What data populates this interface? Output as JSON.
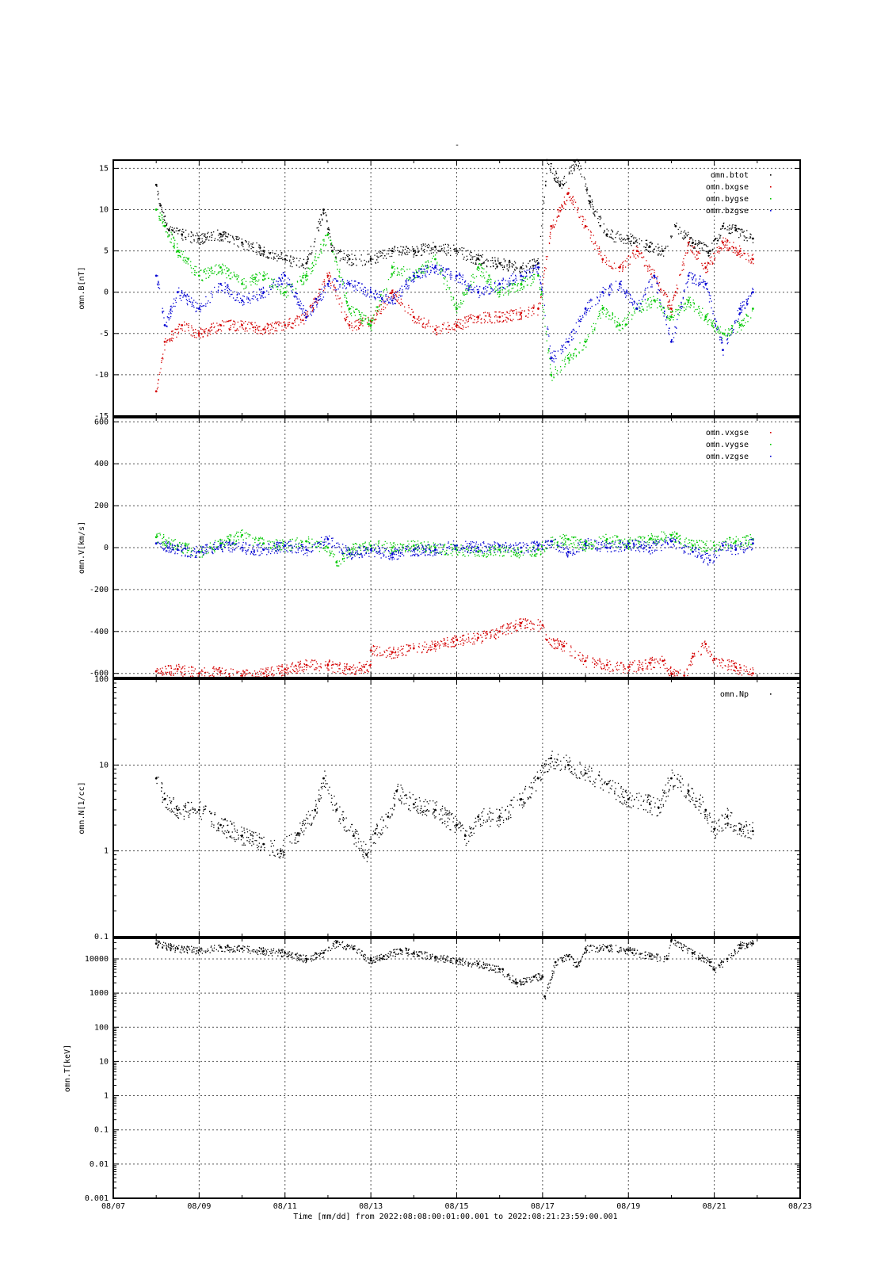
{
  "title": "-",
  "xlabel_template": "Time [mm/dd]  from 2022:08:08:00:01:00.001  to  2022:08:21:23:59:00.001",
  "x_ticks": [
    "08/07",
    "08/09",
    "08/11",
    "08/13",
    "08/15",
    "08/17",
    "08/19",
    "08/21",
    "08/23"
  ],
  "colors": {
    "black": "#000000",
    "red": "#d40000",
    "green": "#00c800",
    "blue": "#0000d2",
    "grid": "#555555"
  },
  "chart_data": [
    {
      "type": "scatter",
      "ylabel": "omn.B[nT]",
      "xlim": [
        7,
        23
      ],
      "ylim": [
        -15,
        16
      ],
      "yticks": [
        -15,
        -10,
        -5,
        0,
        5,
        10,
        15
      ],
      "ytick_labels": [
        "-15",
        "-10",
        "-5",
        "0",
        "5",
        "10",
        "15"
      ],
      "grid": true,
      "legend_placement": "top-right",
      "series": [
        {
          "name": "omn.btot",
          "color": "#000000",
          "x": [
            8.0,
            8.1,
            8.3,
            8.6,
            9.0,
            9.5,
            10.0,
            10.5,
            11.0,
            11.5,
            11.9,
            12.1,
            12.5,
            13.0,
            13.5,
            14.0,
            14.5,
            15.0,
            15.5,
            16.0,
            16.5,
            16.9,
            17.1,
            17.4,
            17.8,
            18.1,
            18.5,
            19.0,
            19.5,
            19.8,
            20.1,
            20.5,
            20.9,
            21.2,
            21.5,
            21.9
          ],
          "y": [
            13,
            10.5,
            7.5,
            7,
            6.5,
            7,
            6,
            5,
            4,
            3.5,
            10,
            5,
            4,
            4,
            5,
            5,
            5.5,
            5,
            4,
            3.5,
            3,
            3.5,
            16,
            13,
            16,
            11,
            7,
            6.5,
            5.5,
            5,
            8,
            6,
            5,
            8,
            7.5,
            6.5
          ]
        },
        {
          "name": "omn.bxgse",
          "color": "#d40000",
          "x": [
            8.0,
            8.2,
            8.6,
            9.0,
            9.5,
            10.0,
            10.5,
            11.0,
            11.5,
            12.0,
            12.5,
            13.0,
            13.5,
            14.0,
            14.5,
            15.0,
            15.5,
            16.0,
            16.5,
            16.9,
            17.2,
            17.6,
            18.0,
            18.4,
            18.8,
            19.2,
            19.6,
            20.0,
            20.4,
            20.8,
            21.2,
            21.6,
            21.9
          ],
          "y": [
            -12,
            -6,
            -4,
            -5,
            -4,
            -4,
            -4.5,
            -4,
            -3,
            2,
            -4,
            -3.5,
            0,
            -3,
            -4.5,
            -4,
            -3,
            -3,
            -2.5,
            -2,
            8,
            12,
            8,
            4,
            3,
            5,
            2,
            -2,
            6,
            3,
            6,
            5,
            4
          ]
        },
        {
          "name": "omn.bygse",
          "color": "#00c800",
          "x": [
            8.0,
            8.2,
            8.5,
            9.0,
            9.5,
            10.0,
            10.5,
            11.0,
            11.5,
            12.0,
            12.5,
            13.0,
            13.5,
            14.0,
            14.5,
            15.0,
            15.5,
            16.0,
            16.5,
            16.9,
            17.2,
            17.6,
            18.0,
            18.4,
            18.8,
            19.2,
            19.6,
            20.0,
            20.4,
            20.8,
            21.2,
            21.6,
            21.9
          ],
          "y": [
            10,
            8,
            5,
            2,
            3,
            1,
            2,
            0,
            2,
            7,
            -2,
            -4,
            3,
            2,
            4,
            -2,
            3,
            0,
            1,
            2,
            -10,
            -8,
            -6,
            -2,
            -4,
            -2,
            -1,
            -3,
            -1,
            -3,
            -5,
            -4,
            -2
          ]
        },
        {
          "name": "omn.bzgse",
          "color": "#0000d2",
          "x": [
            8.0,
            8.2,
            8.5,
            9.0,
            9.5,
            10.0,
            10.5,
            11.0,
            11.5,
            12.0,
            12.5,
            13.0,
            13.5,
            14.0,
            14.5,
            15.0,
            15.5,
            16.0,
            16.5,
            16.9,
            17.2,
            17.6,
            18.0,
            18.4,
            18.8,
            19.2,
            19.6,
            20.0,
            20.4,
            20.8,
            21.2,
            21.6,
            21.9
          ],
          "y": [
            2,
            -4,
            0,
            -2,
            1,
            -1,
            0,
            2,
            -3,
            1,
            1,
            0,
            -1,
            2,
            3,
            2,
            0,
            1,
            2,
            3,
            -8,
            -6,
            -2,
            0,
            1,
            -2,
            2,
            -6,
            2,
            1,
            -7,
            -2,
            0
          ]
        }
      ]
    },
    {
      "type": "scatter",
      "ylabel": "omn.V[km/s]",
      "xlim": [
        7,
        23
      ],
      "ylim": [
        -620,
        620
      ],
      "yticks": [
        -600,
        -400,
        -200,
        0,
        200,
        400,
        600
      ],
      "ytick_labels": [
        "-600",
        "-400",
        "-200",
        "0",
        "200",
        "400",
        "600"
      ],
      "grid": true,
      "legend_placement": "top-right",
      "series": [
        {
          "name": "omn.vxgse",
          "color": "#d40000",
          "x": [
            8.0,
            8.5,
            9.0,
            9.5,
            10.0,
            10.5,
            11.0,
            11.5,
            12.0,
            12.5,
            12.99,
            13.0,
            13.5,
            14.0,
            14.5,
            15.0,
            15.5,
            16.0,
            16.5,
            17.0,
            17.1,
            17.5,
            18.0,
            18.5,
            19.0,
            19.5,
            19.8,
            20.0,
            20.3,
            20.5,
            20.8,
            21.0,
            21.5,
            21.9
          ],
          "y": [
            -590,
            -580,
            -600,
            -590,
            -610,
            -600,
            -580,
            -560,
            -560,
            -580,
            -560,
            -490,
            -500,
            -480,
            -470,
            -440,
            -430,
            -400,
            -360,
            -370,
            -440,
            -470,
            -540,
            -560,
            -570,
            -550,
            -540,
            -600,
            -610,
            -520,
            -460,
            -530,
            -570,
            -600
          ]
        },
        {
          "name": "omn.vygse",
          "color": "#00c800",
          "x": [
            8.0,
            8.5,
            9.0,
            9.5,
            10.0,
            10.5,
            11.0,
            11.5,
            12.0,
            12.2,
            12.5,
            13.0,
            13.5,
            14.0,
            14.5,
            15.0,
            15.5,
            16.0,
            16.5,
            16.9,
            17.2,
            17.6,
            18.0,
            18.5,
            19.0,
            19.5,
            20.0,
            20.5,
            21.0,
            21.5,
            21.9
          ],
          "y": [
            50,
            10,
            -20,
            20,
            60,
            20,
            10,
            30,
            0,
            -70,
            -10,
            10,
            0,
            10,
            0,
            -10,
            -20,
            -10,
            -20,
            -10,
            30,
            40,
            10,
            40,
            20,
            40,
            60,
            10,
            10,
            30,
            40
          ]
        },
        {
          "name": "omn.vzgse",
          "color": "#0000d2",
          "x": [
            8.0,
            8.5,
            9.0,
            9.5,
            10.0,
            10.5,
            11.0,
            11.5,
            12.0,
            12.5,
            13.0,
            13.5,
            14.0,
            14.5,
            15.0,
            15.5,
            16.0,
            16.5,
            16.9,
            17.2,
            17.6,
            18.0,
            18.5,
            19.0,
            19.5,
            20.0,
            20.5,
            20.9,
            21.2,
            21.5,
            21.9
          ],
          "y": [
            20,
            -10,
            -20,
            10,
            0,
            -10,
            10,
            -10,
            40,
            -30,
            -10,
            -30,
            -10,
            -10,
            10,
            0,
            10,
            0,
            10,
            30,
            -20,
            20,
            0,
            20,
            0,
            30,
            -20,
            -60,
            10,
            -10,
            20
          ]
        }
      ]
    },
    {
      "type": "scatter",
      "ylabel": "omn.N[1/cc]",
      "xlim": [
        7,
        23
      ],
      "ylim": [
        0.1,
        100
      ],
      "yscale": "log",
      "yticks": [
        0.1,
        1,
        10,
        100
      ],
      "ytick_labels": [
        "0.1",
        "1",
        "10",
        "100"
      ],
      "grid": true,
      "legend_placement": "top-right",
      "series": [
        {
          "name": "omn.Np",
          "color": "#000000",
          "x": [
            8.0,
            8.2,
            8.5,
            9.0,
            9.5,
            10.0,
            10.5,
            10.9,
            11.3,
            11.7,
            11.9,
            12.2,
            12.6,
            12.9,
            13.1,
            13.4,
            13.6,
            14.0,
            14.5,
            15.0,
            15.2,
            15.5,
            16.0,
            16.5,
            16.9,
            17.2,
            17.6,
            18.0,
            18.5,
            19.0,
            19.5,
            19.7,
            20.0,
            20.4,
            20.8,
            21.0,
            21.3,
            21.6,
            21.9
          ],
          "y": [
            7,
            4,
            3,
            3,
            2,
            1.5,
            1.2,
            1,
            1.6,
            3,
            7,
            3,
            1.5,
            0.9,
            1.6,
            2.5,
            5,
            3.5,
            3,
            2,
            1.5,
            2.5,
            2.5,
            4,
            7,
            12,
            10,
            8,
            6,
            4,
            3.5,
            3.2,
            7,
            5,
            3,
            1.8,
            2.5,
            1.8,
            1.7
          ]
        }
      ]
    },
    {
      "type": "scatter",
      "ylabel": "omn.T[keV]",
      "xlim": [
        7,
        23
      ],
      "ylim": [
        0.001,
        40000
      ],
      "yscale": "log",
      "yticks": [
        0.001,
        0.01,
        0.1,
        1,
        10,
        100,
        1000,
        10000
      ],
      "ytick_labels": [
        "0.001",
        "0.01",
        "0.1",
        "1",
        "10",
        "100",
        "1000",
        "10000"
      ],
      "grid": true,
      "series": [
        {
          "name": "",
          "color": "#000000",
          "x": [
            8.0,
            8.5,
            9.0,
            9.5,
            10.0,
            10.5,
            11.0,
            11.5,
            11.9,
            12.2,
            12.6,
            13.0,
            13.3,
            13.7,
            14.0,
            14.5,
            15.0,
            15.5,
            16.0,
            16.4,
            16.8,
            17.0,
            17.05,
            17.3,
            17.6,
            17.8,
            18.0,
            18.5,
            19.0,
            19.5,
            19.9,
            20.0,
            20.5,
            20.9,
            21.0,
            21.3,
            21.6,
            21.9
          ],
          "y": [
            28000,
            20000,
            18000,
            22000,
            20000,
            17000,
            15000,
            10000,
            15000,
            30000,
            20000,
            9000,
            12000,
            18000,
            15000,
            11000,
            9000,
            7000,
            5000,
            2000,
            3000,
            3000,
            800,
            8000,
            12000,
            6000,
            20000,
            22000,
            18000,
            12000,
            10000,
            35000,
            15000,
            8000,
            5000,
            10000,
            25000,
            28000
          ]
        }
      ]
    }
  ]
}
